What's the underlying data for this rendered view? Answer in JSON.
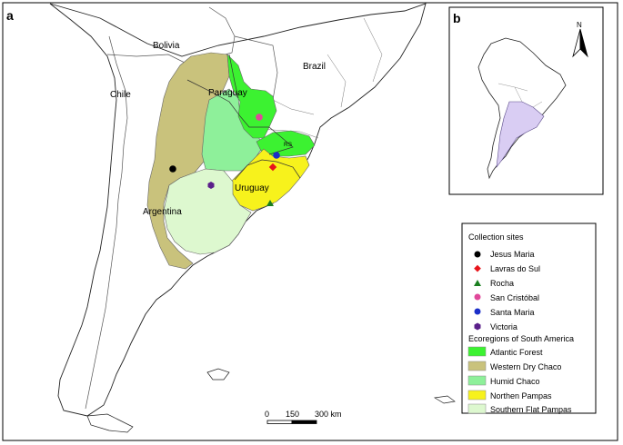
{
  "panel_a": {
    "label": "a",
    "country_labels": {
      "bolivia": "Bolivia",
      "brazil": "Brazil",
      "chile": "Chile",
      "paraguay": "Paraguay",
      "uruguay": "Uruguay",
      "argentina": "Argentina",
      "rs": "RS"
    },
    "scale_bar": {
      "ticks": [
        "0",
        "150",
        "300 km"
      ]
    }
  },
  "panel_b": {
    "label": "b",
    "north_label": "N"
  },
  "legend": {
    "sites_title": "Collection sites",
    "sites": [
      {
        "name": "Jesus Maria",
        "marker": "circle",
        "color": "#000000"
      },
      {
        "name": "Lavras do Sul",
        "marker": "diamond",
        "color": "#e8141b"
      },
      {
        "name": "Rocha",
        "marker": "triangle",
        "color": "#1a7f1f"
      },
      {
        "name": "San Cristóbal",
        "marker": "circle",
        "color": "#e0489a"
      },
      {
        "name": "Santa Maria",
        "marker": "circle",
        "color": "#1b2fc9"
      },
      {
        "name": "Victoria",
        "marker": "hexagon",
        "color": "#5a1f8a"
      }
    ],
    "eco_title": "Ecoregions of South America",
    "ecoregions": [
      {
        "name": "Atlantic Forest",
        "color": "#3cf231"
      },
      {
        "name": "Western Dry Chaco",
        "color": "#c9c27c"
      },
      {
        "name": "Humid Chaco",
        "color": "#8ef09a"
      },
      {
        "name": "Northen Pampas",
        "color": "#f7f21c"
      },
      {
        "name": "Southern Flat Pampas",
        "color": "#ddf8cf"
      }
    ]
  }
}
